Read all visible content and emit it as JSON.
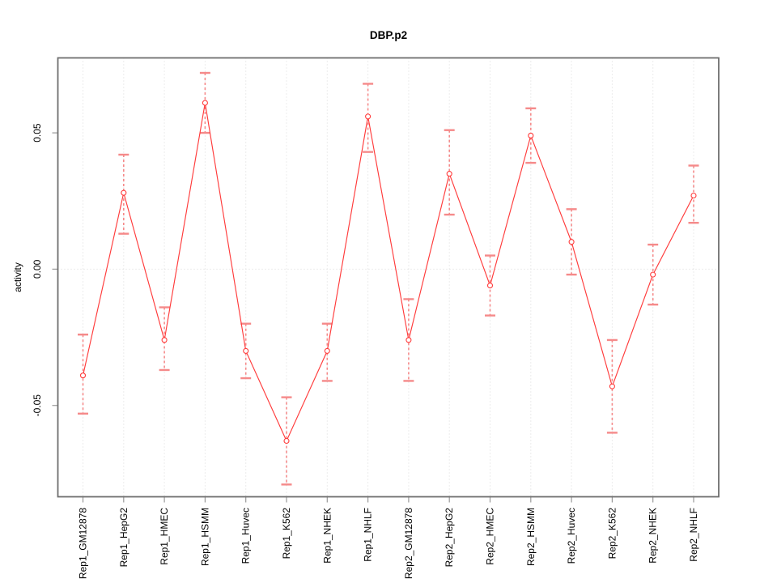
{
  "chart_data": {
    "type": "line",
    "title": "DBP.p2",
    "xlabel": "",
    "ylabel": "activity",
    "categories": [
      "Rep1_GM12878",
      "Rep1_HepG2",
      "Rep1_HMEC",
      "Rep1_HSMM",
      "Rep1_Huvec",
      "Rep1_K562",
      "Rep1_NHEK",
      "Rep1_NHLF",
      "Rep2_GM12878",
      "Rep2_HepG2",
      "Rep2_HMEC",
      "Rep2_HSMM",
      "Rep2_Huvec",
      "Rep2_K562",
      "Rep2_NHEK",
      "Rep2_NHLF"
    ],
    "values": [
      -0.039,
      0.028,
      -0.026,
      0.061,
      -0.03,
      -0.063,
      -0.03,
      0.056,
      -0.026,
      0.035,
      -0.006,
      0.049,
      0.01,
      -0.043,
      -0.002,
      0.027
    ],
    "error_upper": [
      -0.024,
      0.042,
      -0.014,
      0.072,
      -0.02,
      -0.047,
      -0.02,
      0.068,
      -0.011,
      0.051,
      0.005,
      0.059,
      0.022,
      -0.026,
      0.009,
      0.038
    ],
    "error_lower": [
      -0.053,
      0.013,
      -0.037,
      0.05,
      -0.04,
      -0.079,
      -0.041,
      0.043,
      -0.041,
      0.02,
      -0.017,
      0.039,
      -0.002,
      -0.06,
      -0.013,
      0.017
    ],
    "yticks": [
      {
        "value": -0.05,
        "label": "-0.05"
      },
      {
        "value": 0.0,
        "label": "0.00"
      },
      {
        "value": 0.05,
        "label": "0.05"
      }
    ],
    "ylim": [
      -0.0835,
      0.0775
    ],
    "grid": {
      "vertical": true,
      "horizontal_at_zero": true
    },
    "legend_position": "none",
    "colors": {
      "line": "#ff3b3b",
      "point_fill": "#ffffff",
      "error_bar": "#f58a8a",
      "grid": "#d9d9d9",
      "frame": "#6e6e6e",
      "tick": "#999999",
      "text": "#000000"
    }
  }
}
